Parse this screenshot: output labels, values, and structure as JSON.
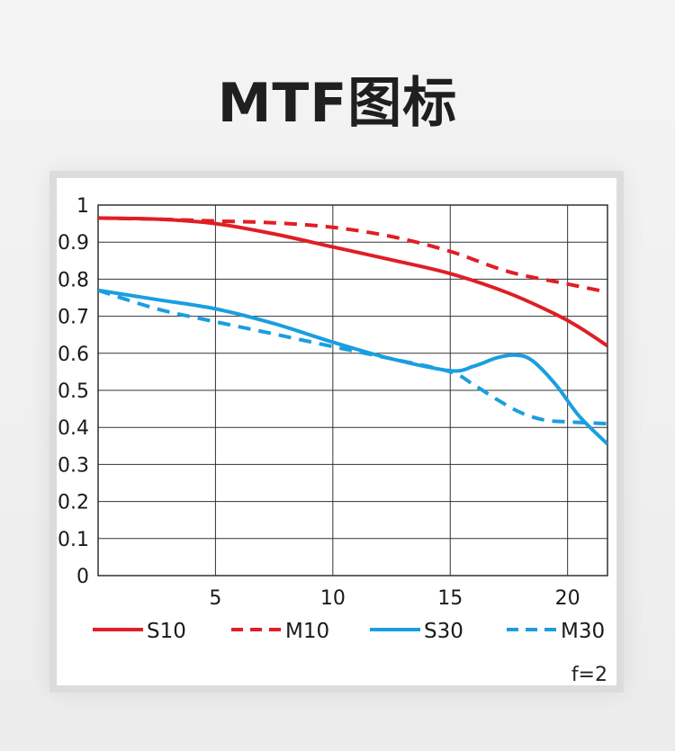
{
  "page": {
    "title": "MTF图标"
  },
  "chart_data": {
    "type": "line",
    "title": "",
    "xlabel": "",
    "ylabel": "",
    "xlim": [
      0,
      21.7
    ],
    "ylim": [
      0,
      1
    ],
    "x_ticks": [
      5,
      10,
      15,
      20
    ],
    "y_ticks": [
      0,
      0.1,
      0.2,
      0.3,
      0.4,
      0.5,
      0.6,
      0.7,
      0.8,
      0.9,
      1
    ],
    "y_tick_labels": [
      "0",
      "0.1",
      "0.2",
      "0.3",
      "0.4",
      "0.5",
      "0.6",
      "0.7",
      "0.8",
      "0.9",
      "1"
    ],
    "x_tick_labels": [
      "5",
      "10",
      "15",
      "20"
    ],
    "grid": true,
    "legend_position": "bottom",
    "annotation": "f=2",
    "series": [
      {
        "name": "S10",
        "color": "#e01e25",
        "dash": false,
        "x": [
          0,
          2.5,
          5,
          7.5,
          10,
          12.5,
          15,
          17.5,
          19.5,
          20.5,
          21.7
        ],
        "y": [
          0.965,
          0.962,
          0.95,
          0.922,
          0.887,
          0.852,
          0.815,
          0.762,
          0.705,
          0.67,
          0.62
        ]
      },
      {
        "name": "M10",
        "color": "#e01e25",
        "dash": true,
        "x": [
          0,
          2.5,
          5,
          7.5,
          10,
          12.5,
          15,
          17.5,
          20,
          21.7
        ],
        "y": [
          0.965,
          0.962,
          0.957,
          0.952,
          0.94,
          0.915,
          0.875,
          0.82,
          0.787,
          0.765
        ]
      },
      {
        "name": "S30",
        "color": "#1a9ee0",
        "dash": false,
        "x": [
          0,
          2.5,
          5,
          7.5,
          10,
          12.5,
          15,
          16,
          17,
          17.8,
          18.5,
          19.5,
          20.5,
          21.7
        ],
        "y": [
          0.77,
          0.745,
          0.72,
          0.68,
          0.63,
          0.585,
          0.553,
          0.565,
          0.588,
          0.595,
          0.58,
          0.515,
          0.43,
          0.355
        ]
      },
      {
        "name": "M30",
        "color": "#1a9ee0",
        "dash": true,
        "x": [
          0,
          2.5,
          5,
          7.5,
          10,
          12.5,
          15,
          16,
          17,
          18,
          19,
          20,
          21.7
        ],
        "y": [
          0.77,
          0.72,
          0.685,
          0.652,
          0.618,
          0.585,
          0.55,
          0.515,
          0.475,
          0.44,
          0.42,
          0.415,
          0.41
        ]
      }
    ]
  }
}
